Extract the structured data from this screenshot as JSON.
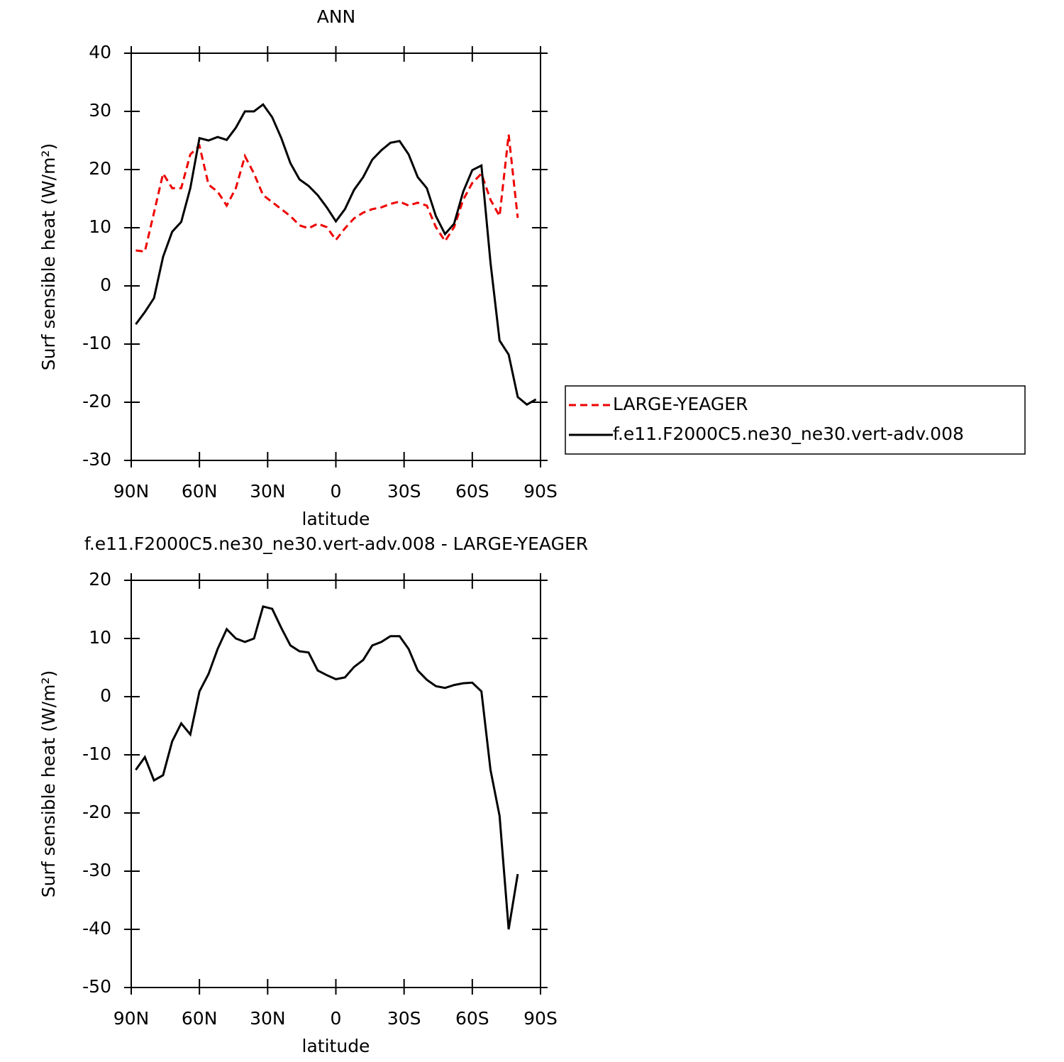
{
  "chart_data": [
    {
      "type": "line",
      "title": "ANN",
      "xlabel": "latitude",
      "ylabel": "Surf sensible heat (W/m²)",
      "x": [
        88,
        84,
        80,
        76,
        72,
        68,
        64,
        60,
        56,
        52,
        48,
        44,
        40,
        36,
        32,
        28,
        24,
        20,
        16,
        12,
        8,
        4,
        0,
        -4,
        -8,
        -12,
        -16,
        -20,
        -24,
        -28,
        -32,
        -36,
        -40,
        -44,
        -48,
        -52,
        -56,
        -60,
        -64,
        -68,
        -72,
        -76,
        -80,
        -84,
        -88
      ],
      "xlim": [
        90,
        -90
      ],
      "xticks": [
        {
          "value": 90,
          "label": "90N"
        },
        {
          "value": 60,
          "label": "60N"
        },
        {
          "value": 30,
          "label": "30N"
        },
        0,
        {
          "value": -30,
          "label": "30S"
        },
        {
          "value": -60,
          "label": "60S"
        },
        {
          "value": -90,
          "label": "90S"
        }
      ],
      "ylim": [
        -30,
        40
      ],
      "yticks": [
        -30,
        -20,
        -10,
        0,
        10,
        20,
        30,
        40
      ],
      "legend": "outside right",
      "series": [
        {
          "name": "LARGE-YEAGER",
          "color": "#ee0000",
          "linestyle": "dashed",
          "values": [
            6.1,
            5.9,
            12.6,
            19.3,
            16.8,
            16.8,
            22.6,
            24.1,
            17.4,
            16.2,
            13.8,
            16.8,
            22.3,
            19.3,
            15.6,
            14.4,
            13.2,
            12,
            10.4,
            9.9,
            10.7,
            10.1,
            7.9,
            9.9,
            11.6,
            12.6,
            13.2,
            13.5,
            14.1,
            14.5,
            13.8,
            14.3,
            13.8,
            10.1,
            7.7,
            10.1,
            14.8,
            17.7,
            19.3,
            14.8,
            12,
            26,
            11.7,
            null,
            null
          ]
        },
        {
          "name": "f.e11.F2000C5.ne30_ne30.vert-adv.008",
          "color": "#000000",
          "linestyle": "solid",
          "values": [
            -6.6,
            -4.5,
            -2.1,
            5,
            9.3,
            11,
            16.8,
            25.4,
            25,
            25.6,
            25.1,
            27.2,
            30,
            30,
            31.2,
            29,
            25.4,
            21.1,
            18.3,
            17.2,
            15.6,
            13.5,
            11.1,
            13.2,
            16.5,
            18.7,
            21.7,
            23.3,
            24.6,
            24.9,
            22.6,
            18.7,
            16.8,
            12,
            8.9,
            10.7,
            16.2,
            19.9,
            20.7,
            4,
            -9.4,
            -11.8,
            -19.1,
            -20.4,
            -19.5
          ]
        }
      ]
    },
    {
      "type": "line",
      "title": "f.e11.F2000C5.ne30_ne30.vert-adv.008 - LARGE-YEAGER",
      "xlabel": "latitude",
      "ylabel": "Surf sensible heat (W/m²)",
      "x": [
        88,
        84,
        80,
        76,
        72,
        68,
        64,
        60,
        56,
        52,
        48,
        44,
        40,
        36,
        32,
        28,
        24,
        20,
        16,
        12,
        8,
        4,
        0,
        -4,
        -8,
        -12,
        -16,
        -20,
        -24,
        -28,
        -32,
        -36,
        -40,
        -44,
        -48,
        -52,
        -56,
        -60,
        -64,
        -68,
        -72,
        -76,
        -80,
        -84,
        -88
      ],
      "xlim": [
        90,
        -90
      ],
      "xticks": [
        {
          "value": 90,
          "label": "90N"
        },
        {
          "value": 60,
          "label": "60N"
        },
        {
          "value": 30,
          "label": "30N"
        },
        0,
        {
          "value": -30,
          "label": "30S"
        },
        {
          "value": -60,
          "label": "60S"
        },
        {
          "value": -90,
          "label": "90S"
        }
      ],
      "ylim": [
        -50,
        20
      ],
      "yticks": [
        -50,
        -40,
        -30,
        -20,
        -10,
        0,
        10,
        20
      ],
      "series": [
        {
          "color": "#000000",
          "linestyle": "solid",
          "values": [
            -12.6,
            -10.4,
            -14.4,
            -13.5,
            -7.7,
            -4.6,
            -6.5,
            0.9,
            3.9,
            8.2,
            11.6,
            10,
            9.4,
            10,
            15.5,
            15.1,
            11.8,
            8.8,
            7.8,
            7.6,
            4.5,
            3.7,
            3,
            3.3,
            5.1,
            6.3,
            8.8,
            9.4,
            10.4,
            10.4,
            8.2,
            4.5,
            2.9,
            1.8,
            1.5,
            2,
            2.3,
            2.4,
            0.9,
            -12.6,
            -20.5,
            -40,
            -30.5,
            null,
            null
          ]
        }
      ]
    }
  ]
}
